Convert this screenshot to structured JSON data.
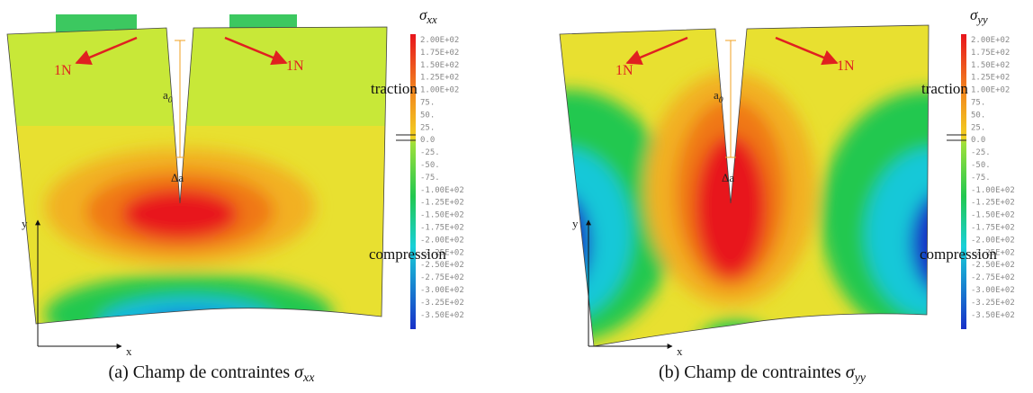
{
  "panels": [
    {
      "colorbar_title": {
        "symbol": "σ",
        "subscript": "xx"
      },
      "colorbar_ticks": [
        "2.00E+02",
        "1.75E+02",
        "1.50E+02",
        "1.25E+02",
        "1.00E+02",
        "75.",
        "50.",
        "25.",
        "0.0",
        "-25.",
        "-50.",
        "-75.",
        "-1.00E+02",
        "-1.25E+02",
        "-1.50E+02",
        "-1.75E+02",
        "-2.00E+02",
        "-2.25E+02",
        "-2.50E+02",
        "-2.75E+02",
        "-3.00E+02",
        "-3.25E+02",
        "-3.50E+02"
      ],
      "traction": "traction",
      "compression": "compression",
      "loads": [
        "1N",
        "1N"
      ],
      "crack_length": {
        "symbol": "a",
        "subscript": "0"
      },
      "crack_increment": "Δa",
      "axes": {
        "y": "y",
        "x": "x"
      },
      "caption": {
        "label": "(a)",
        "text": "Champ de contraintes",
        "symbol": "σ",
        "subscript": "xx"
      }
    },
    {
      "colorbar_title": {
        "symbol": "σ",
        "subscript": "yy"
      },
      "colorbar_ticks": [
        "2.00E+02",
        "1.75E+02",
        "1.50E+02",
        "1.25E+02",
        "1.00E+02",
        "75.",
        "50.",
        "25.",
        "0.0",
        "-25.",
        "-50.",
        "-75.",
        "-1.00E+02",
        "-1.25E+02",
        "-1.50E+02",
        "-1.75E+02",
        "-2.00E+02",
        "-2.25E+02",
        "-2.50E+02",
        "-2.75E+02",
        "-3.00E+02",
        "-3.25E+02",
        "-3.50E+02"
      ],
      "traction": "traction",
      "compression": "compression",
      "loads": [
        "1N",
        "1N"
      ],
      "crack_length": {
        "symbol": "a",
        "subscript": "0"
      },
      "crack_increment": "Δa",
      "axes": {
        "y": "y",
        "x": "x"
      },
      "caption": {
        "label": "(b)",
        "text": "Champ de contraintes",
        "symbol": "σ",
        "subscript": "yy"
      }
    }
  ]
}
